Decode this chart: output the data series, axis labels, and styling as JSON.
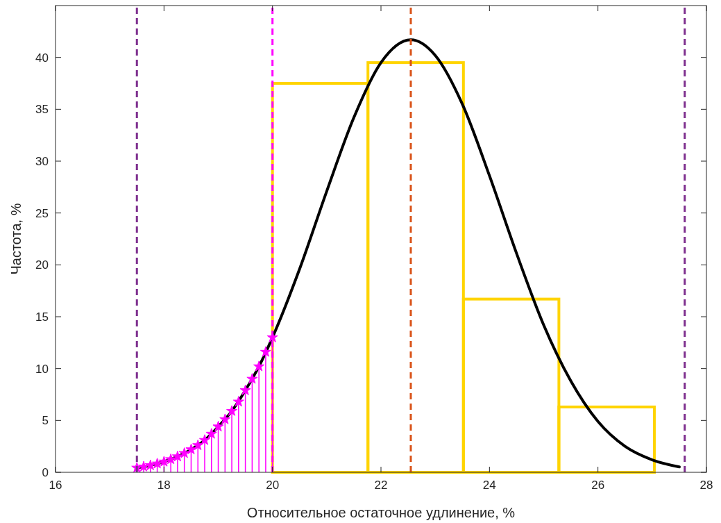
{
  "chart_data": {
    "type": "histogram",
    "xlabel": "Относительное остаточное удлинение, %",
    "ylabel": "Частота, %",
    "xlim": [
      16,
      28
    ],
    "ylim": [
      0,
      45
    ],
    "xticks": [
      16,
      18,
      20,
      22,
      24,
      26,
      28
    ],
    "yticks": [
      0,
      5,
      10,
      15,
      20,
      25,
      30,
      35,
      40
    ],
    "series": [
      {
        "color": "#ffd400",
        "bins": [
          20,
          21.76,
          23.52,
          25.28,
          27.04
        ],
        "values": [
          37.5,
          39.5,
          16.7,
          6.3
        ]
      },
      {
        "type": "line",
        "color": "#000000",
        "line_style": "solid",
        "x": [
          17.5,
          17.75,
          18,
          18.25,
          18.5,
          18.75,
          19,
          19.25,
          19.5,
          19.75,
          20,
          20.5,
          21,
          21.5,
          22,
          22.55,
          23,
          23.5,
          24,
          24.5,
          25,
          25.5,
          26,
          26.5,
          27,
          27.5
        ],
        "values": [
          0.43,
          0.67,
          1.02,
          1.52,
          2.2,
          3.1,
          4.4,
          5.9,
          7.9,
          10.2,
          13.0,
          19.6,
          27.1,
          34.2,
          39.5,
          41.7,
          40.2,
          35.5,
          28.6,
          21.1,
          14.2,
          8.8,
          4.9,
          2.5,
          1.2,
          0.52
        ]
      },
      {
        "type": "lollipop",
        "color": "#ff00ff",
        "marker": "star",
        "x": [
          17.5,
          17.625,
          17.75,
          17.875,
          18,
          18.125,
          18.25,
          18.375,
          18.5,
          18.625,
          18.75,
          18.875,
          19,
          19.125,
          19.25,
          19.375,
          19.5,
          19.625,
          19.75,
          19.875,
          20
        ],
        "values": [
          0.43,
          0.54,
          0.67,
          0.83,
          1.02,
          1.25,
          1.52,
          1.84,
          2.2,
          2.6,
          3.1,
          3.7,
          4.4,
          5.1,
          5.9,
          6.8,
          7.9,
          9.0,
          10.2,
          11.6,
          13.0
        ]
      }
    ],
    "ref_lines": [
      {
        "axis": "x",
        "value": 17.5,
        "color": "#7e2f8e",
        "line_style": "dashed"
      },
      {
        "axis": "x",
        "value": 20,
        "color": "#ff00ff",
        "line_style": "dashed"
      },
      {
        "axis": "x",
        "value": 22.55,
        "color": "#d95319",
        "line_style": "dashed"
      },
      {
        "axis": "x",
        "value": 27.6,
        "color": "#7e2f8e",
        "line_style": "dashed"
      }
    ]
  }
}
